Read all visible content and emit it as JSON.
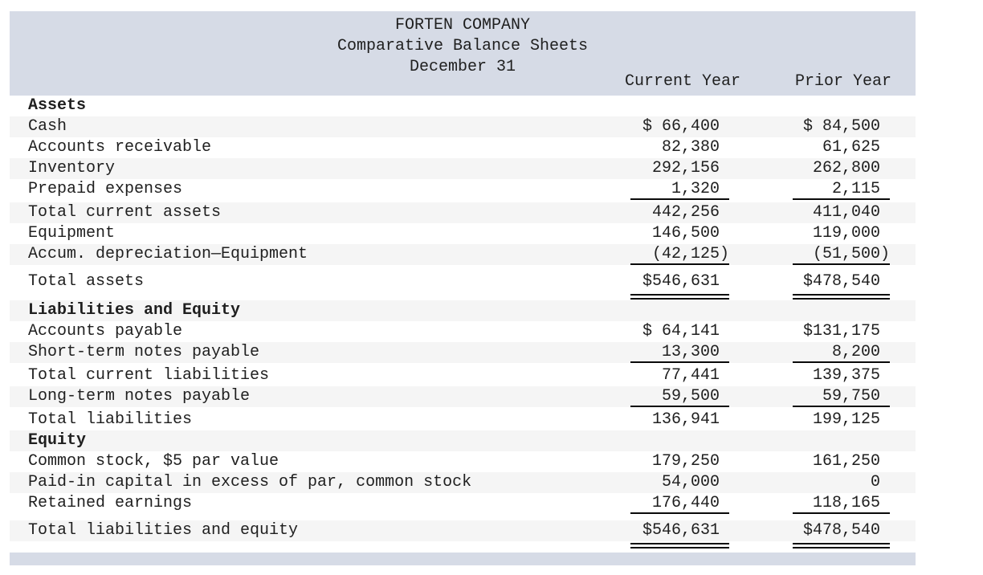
{
  "colors": {
    "band_bg": "#d6dbe6",
    "stripe_bg": "#f5f5f5",
    "text": "#1f1f1f",
    "rule": "#0a0a0a"
  },
  "header": {
    "company": "FORTEN COMPANY",
    "report_title": "Comparative Balance Sheets",
    "report_date": "December 31"
  },
  "columns": {
    "current": "Current Year",
    "prior": "Prior Year"
  },
  "rows": [
    {
      "label": "Assets",
      "v1": "",
      "v2": "",
      "section": true,
      "shaded": false,
      "rule": "none",
      "gap": 0
    },
    {
      "label": "Cash",
      "v1": "$ 66,400",
      "v2": "$ 84,500",
      "section": false,
      "shaded": true,
      "rule": "none",
      "gap": 0
    },
    {
      "label": "Accounts receivable",
      "v1": "82,380",
      "v2": "61,625",
      "section": false,
      "shaded": false,
      "rule": "none",
      "gap": 0
    },
    {
      "label": "Inventory",
      "v1": "292,156",
      "v2": "262,800",
      "section": false,
      "shaded": true,
      "rule": "none",
      "gap": 0
    },
    {
      "label": "Prepaid expenses",
      "v1": "1,320",
      "v2": "2,115",
      "section": false,
      "shaded": false,
      "rule": "single",
      "gap": 0
    },
    {
      "label": "Total current assets",
      "v1": "442,256",
      "v2": "411,040",
      "section": false,
      "shaded": true,
      "rule": "none",
      "gap": 3
    },
    {
      "label": "Equipment",
      "v1": "146,500",
      "v2": "119,000",
      "section": false,
      "shaded": false,
      "rule": "none",
      "gap": 0
    },
    {
      "label": "Accum. depreciation—Equipment",
      "v1": "(42,125)",
      "v2": "(51,500)",
      "section": false,
      "shaded": true,
      "rule": "single",
      "gap": 0
    },
    {
      "label": "Total assets",
      "v1": "$546,631",
      "v2": "$478,540",
      "section": false,
      "shaded": false,
      "rule": "double",
      "gap": 8
    },
    {
      "label": "Liabilities and Equity",
      "v1": "",
      "v2": "",
      "section": true,
      "shaded": true,
      "rule": "none",
      "gap": 10
    },
    {
      "label": "Accounts payable",
      "v1": "$ 64,141",
      "v2": "$131,175",
      "section": false,
      "shaded": false,
      "rule": "none",
      "gap": 0
    },
    {
      "label": "Short-term notes payable",
      "v1": "13,300",
      "v2": "8,200",
      "section": false,
      "shaded": true,
      "rule": "single",
      "gap": 0
    },
    {
      "label": "Total current liabilities",
      "v1": "77,441",
      "v2": "139,375",
      "section": false,
      "shaded": false,
      "rule": "none",
      "gap": 3
    },
    {
      "label": "Long-term notes payable",
      "v1": "59,500",
      "v2": "59,750",
      "section": false,
      "shaded": true,
      "rule": "single",
      "gap": 0
    },
    {
      "label": "Total liabilities",
      "v1": "136,941",
      "v2": "199,125",
      "section": false,
      "shaded": false,
      "rule": "none",
      "gap": 3
    },
    {
      "label": "Equity",
      "v1": "",
      "v2": "",
      "section": true,
      "shaded": true,
      "rule": "none",
      "gap": 0
    },
    {
      "label": "Common stock, $5 par value",
      "v1": "179,250",
      "v2": "161,250",
      "section": false,
      "shaded": false,
      "rule": "none",
      "gap": 0
    },
    {
      "label": "Paid-in capital in excess of par, common stock",
      "v1": "54,000",
      "v2": "0",
      "section": false,
      "shaded": true,
      "rule": "none",
      "gap": 0
    },
    {
      "label": "Retained earnings",
      "v1": "176,440",
      "v2": "118,165",
      "section": false,
      "shaded": false,
      "rule": "single",
      "gap": 0
    },
    {
      "label": "Total liabilities and equity",
      "v1": "$546,631",
      "v2": "$478,540",
      "section": false,
      "shaded": true,
      "rule": "double",
      "gap": 8
    }
  ]
}
